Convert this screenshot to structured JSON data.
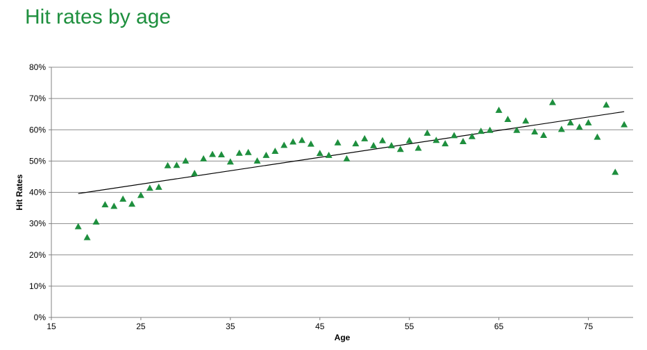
{
  "title": "Hit rates by age",
  "chart_data": {
    "type": "scatter",
    "title": "Hit rates by age",
    "xlabel": "Age",
    "ylabel": "Hit Rates",
    "xlim": [
      15,
      80
    ],
    "ylim": [
      0,
      0.8
    ],
    "x_ticks": [
      "15",
      "25",
      "35",
      "45",
      "55",
      "65",
      "75"
    ],
    "y_ticks": [
      "0%",
      "10%",
      "20%",
      "30%",
      "40%",
      "50%",
      "60%",
      "70%",
      "80%"
    ],
    "grid": "horizontal",
    "marker": "triangle",
    "marker_color": "#1e8f3e",
    "trendline": {
      "type": "linear",
      "x": [
        18,
        79
      ],
      "y": [
        0.396,
        0.658
      ],
      "color": "#000000"
    },
    "series": [
      {
        "x": [
          18,
          19,
          20,
          21,
          22,
          23,
          24,
          25,
          26,
          27,
          28,
          29,
          30,
          31,
          32,
          33,
          34,
          35,
          36,
          37,
          38,
          39,
          40,
          41,
          42,
          43,
          44,
          45,
          46,
          47,
          48,
          49,
          50,
          51,
          52,
          53,
          54,
          55,
          56,
          57,
          58,
          59,
          60,
          61,
          62,
          63,
          64,
          65,
          66,
          67,
          68,
          69,
          70,
          71,
          72,
          73,
          74,
          75,
          76,
          77,
          78,
          79
        ],
        "y": [
          0.29,
          0.255,
          0.305,
          0.36,
          0.355,
          0.378,
          0.362,
          0.39,
          0.413,
          0.416,
          0.485,
          0.486,
          0.5,
          0.46,
          0.507,
          0.521,
          0.52,
          0.497,
          0.525,
          0.527,
          0.5,
          0.518,
          0.531,
          0.55,
          0.561,
          0.566,
          0.554,
          0.524,
          0.518,
          0.558,
          0.507,
          0.555,
          0.571,
          0.549,
          0.565,
          0.549,
          0.537,
          0.565,
          0.541,
          0.589,
          0.566,
          0.555,
          0.581,
          0.562,
          0.578,
          0.595,
          0.598,
          0.662,
          0.633,
          0.598,
          0.628,
          0.593,
          0.582,
          0.687,
          0.601,
          0.622,
          0.608,
          0.622,
          0.576,
          0.679,
          0.464,
          0.616
        ]
      }
    ]
  }
}
